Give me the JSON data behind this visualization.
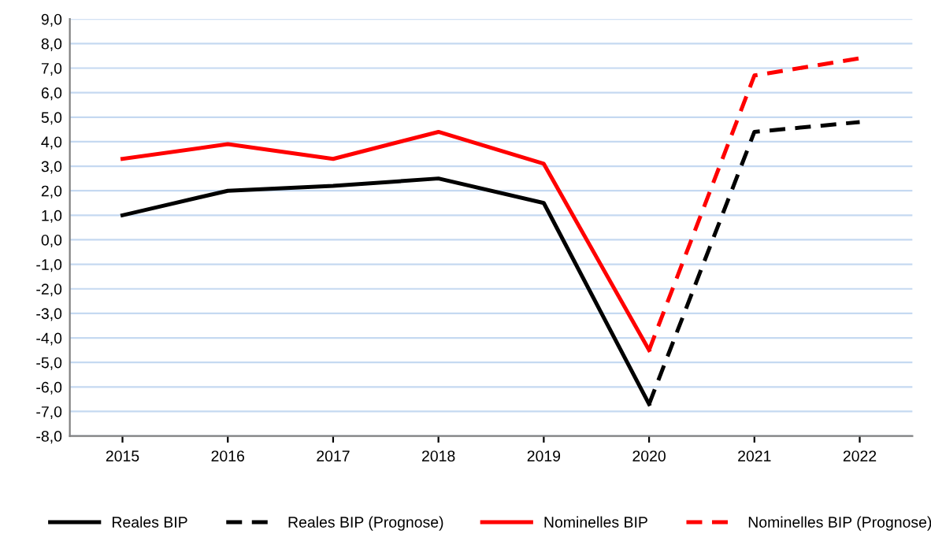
{
  "chart_data": {
    "type": "line",
    "categories": [
      "2015",
      "2016",
      "2017",
      "2018",
      "2019",
      "2020",
      "2021",
      "2022"
    ],
    "series": [
      {
        "name": "Reales BIP",
        "color": "#000000",
        "line_style": "solid",
        "values": [
          1.0,
          2.0,
          2.2,
          2.5,
          1.5,
          -6.7,
          null,
          null
        ]
      },
      {
        "name": "Reales BIP (Prognose)",
        "color": "#000000",
        "line_style": "dashed",
        "values": [
          null,
          null,
          null,
          null,
          null,
          -6.7,
          4.4,
          4.8
        ]
      },
      {
        "name": "Nominelles BIP",
        "color": "#ff0000",
        "line_style": "solid",
        "values": [
          3.3,
          3.9,
          3.3,
          4.4,
          3.1,
          -4.5,
          null,
          null
        ]
      },
      {
        "name": "Nominelles BIP (Prognose)",
        "color": "#ff0000",
        "line_style": "dashed",
        "values": [
          null,
          null,
          null,
          null,
          null,
          -4.5,
          6.7,
          7.4
        ]
      }
    ],
    "ylim": [
      -8,
      9
    ],
    "yticks": [
      {
        "value": -8,
        "label": "-8,0"
      },
      {
        "value": -7,
        "label": "-7,0"
      },
      {
        "value": -6,
        "label": "-6,0"
      },
      {
        "value": -5,
        "label": "-5,0"
      },
      {
        "value": -4,
        "label": "-4,0"
      },
      {
        "value": -3,
        "label": "-3,0"
      },
      {
        "value": -2,
        "label": "-2,0"
      },
      {
        "value": -1,
        "label": "-1,0"
      },
      {
        "value": 0,
        "label": "0,0"
      },
      {
        "value": 1,
        "label": "1,0"
      },
      {
        "value": 2,
        "label": "2,0"
      },
      {
        "value": 3,
        "label": "3,0"
      },
      {
        "value": 4,
        "label": "4,0"
      },
      {
        "value": 5,
        "label": "5,0"
      },
      {
        "value": 6,
        "label": "6,0"
      },
      {
        "value": 7,
        "label": "7,0"
      },
      {
        "value": 8,
        "label": "8,0"
      },
      {
        "value": 9,
        "label": "9,0"
      }
    ],
    "grid": "y",
    "legend": "bottom",
    "marker": "none"
  }
}
